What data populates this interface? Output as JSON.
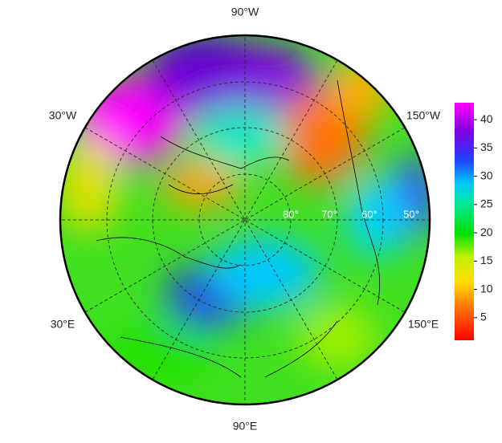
{
  "map": {
    "longitude_labels": [
      "90°W",
      "30°W",
      "150°W",
      "30°E",
      "150°E",
      "90°E"
    ],
    "latitude_labels": [
      "80°",
      "70°",
      "60°",
      "50°"
    ],
    "colorbar": {
      "range": [
        1,
        43
      ],
      "ticks": [
        5,
        10,
        15,
        20,
        25,
        30,
        35,
        40
      ]
    }
  }
}
